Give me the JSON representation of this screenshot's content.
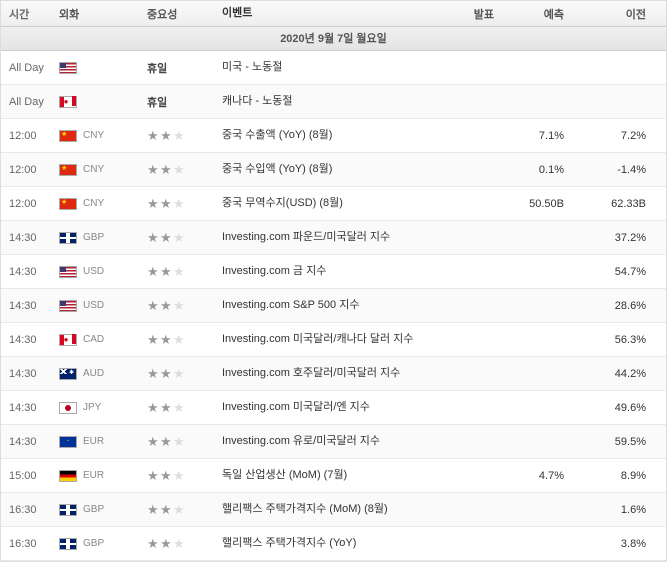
{
  "headers": {
    "time": "시간",
    "currency": "외화",
    "importance": "중요성",
    "event": "이벤트",
    "actual": "발표",
    "forecast": "예측",
    "previous": "이전"
  },
  "date_header": "2020년 9월 7일 월요일",
  "colors": {
    "star_on": "#999999",
    "star_off": "#dddddd",
    "row_border": "#e8e8e8"
  },
  "rows": [
    {
      "time": "All Day",
      "flag": "us",
      "currency": "",
      "importance": 0,
      "holiday": true,
      "importance_label": "휴일",
      "event": "미국 - 노동절",
      "actual": "",
      "forecast": "",
      "previous": ""
    },
    {
      "time": "All Day",
      "flag": "ca",
      "currency": "",
      "importance": 0,
      "holiday": true,
      "importance_label": "휴일",
      "event": "캐나다 - 노동절",
      "actual": "",
      "forecast": "",
      "previous": ""
    },
    {
      "time": "12:00",
      "flag": "cn",
      "currency": "CNY",
      "importance": 2,
      "event": "중국 수출액 (YoY) (8월)",
      "actual": "",
      "forecast": "7.1%",
      "previous": "7.2%"
    },
    {
      "time": "12:00",
      "flag": "cn",
      "currency": "CNY",
      "importance": 2,
      "event": "중국 수입액 (YoY) (8월)",
      "actual": "",
      "forecast": "0.1%",
      "previous": "-1.4%"
    },
    {
      "time": "12:00",
      "flag": "cn",
      "currency": "CNY",
      "importance": 2,
      "event": "중국 무역수지(USD) (8월)",
      "actual": "",
      "forecast": "50.50B",
      "previous": "62.33B"
    },
    {
      "time": "14:30",
      "flag": "gb",
      "currency": "GBP",
      "importance": 2,
      "event": "Investing.com 파운드/미국달러 지수",
      "actual": "",
      "forecast": "",
      "previous": "37.2%"
    },
    {
      "time": "14:30",
      "flag": "us",
      "currency": "USD",
      "importance": 2,
      "event": "Investing.com 금 지수",
      "actual": "",
      "forecast": "",
      "previous": "54.7%"
    },
    {
      "time": "14:30",
      "flag": "us",
      "currency": "USD",
      "importance": 2,
      "event": "Investing.com S&P 500 지수",
      "actual": "",
      "forecast": "",
      "previous": "28.6%"
    },
    {
      "time": "14:30",
      "flag": "ca",
      "currency": "CAD",
      "importance": 2,
      "event": "Investing.com 미국달러/캐나다 달러 지수",
      "actual": "",
      "forecast": "",
      "previous": "56.3%"
    },
    {
      "time": "14:30",
      "flag": "au",
      "currency": "AUD",
      "importance": 2,
      "event": "Investing.com 호주달러/미국달러 지수",
      "actual": "",
      "forecast": "",
      "previous": "44.2%"
    },
    {
      "time": "14:30",
      "flag": "jp",
      "currency": "JPY",
      "importance": 2,
      "event": "Investing.com 미국달러/엔 지수",
      "actual": "",
      "forecast": "",
      "previous": "49.6%"
    },
    {
      "time": "14:30",
      "flag": "eu",
      "currency": "EUR",
      "importance": 2,
      "event": "Investing.com 유로/미국달러 지수",
      "actual": "",
      "forecast": "",
      "previous": "59.5%"
    },
    {
      "time": "15:00",
      "flag": "de",
      "currency": "EUR",
      "importance": 2,
      "event": "독일 산업생산 (MoM) (7월)",
      "actual": "",
      "forecast": "4.7%",
      "previous": "8.9%"
    },
    {
      "time": "16:30",
      "flag": "gb",
      "currency": "GBP",
      "importance": 2,
      "event": "핼리팩스 주택가격지수 (MoM) (8월)",
      "actual": "",
      "forecast": "",
      "previous": "1.6%"
    },
    {
      "time": "16:30",
      "flag": "gb",
      "currency": "GBP",
      "importance": 2,
      "event": "핼리팩스 주택가격지수 (YoY)",
      "actual": "",
      "forecast": "",
      "previous": "3.8%"
    }
  ]
}
